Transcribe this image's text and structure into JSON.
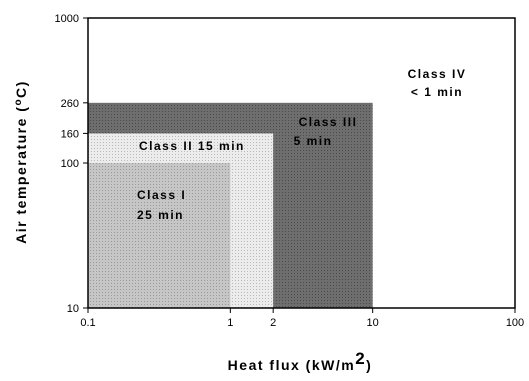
{
  "chart_data": {
    "type": "area",
    "title": "",
    "xlabel": "Heat flux (kW/m",
    "xlabel_sup": "2",
    "xlabel_close": ")",
    "ylabel": "Air temperature (",
    "ylabel_sup": "o",
    "ylabel_close": "C)",
    "x_scale": "log",
    "y_scale": "log",
    "xlim": [
      0.1,
      100
    ],
    "ylim": [
      10,
      1000
    ],
    "x_ticks": [
      {
        "value": 0.1,
        "label": "0.1"
      },
      {
        "value": 1,
        "label": "1"
      },
      {
        "value": 2,
        "label": "2"
      },
      {
        "value": 10,
        "label": "10"
      },
      {
        "value": 100,
        "label": "100"
      }
    ],
    "y_ticks": [
      {
        "value": 10,
        "label": "10"
      },
      {
        "value": 100,
        "label": "100"
      },
      {
        "value": 160,
        "label": "160"
      },
      {
        "value": 260,
        "label": "260"
      },
      {
        "value": 1000,
        "label": "1000"
      }
    ],
    "regions": [
      {
        "name": "Class III",
        "time": "5 min",
        "x_max": 10,
        "y_max": 260,
        "color": "#6e6e6e"
      },
      {
        "name": "Class II",
        "time": "15 min",
        "x_max": 2,
        "y_max": 160,
        "color": "#e8e8e8"
      },
      {
        "name": "Class I",
        "time": "25 min",
        "x_max": 1,
        "y_max": 100,
        "color": "#c4c4c4"
      }
    ],
    "labels": {
      "class_iv_line1": "Class IV",
      "class_iv_line2": "< 1 min",
      "class_iii_line1": "Class III",
      "class_iii_line2": "5 min",
      "class_ii": "Class II 15 min",
      "class_i_line1": "Class I",
      "class_i_line2": "25 min"
    },
    "grid": false,
    "legend": "none"
  }
}
